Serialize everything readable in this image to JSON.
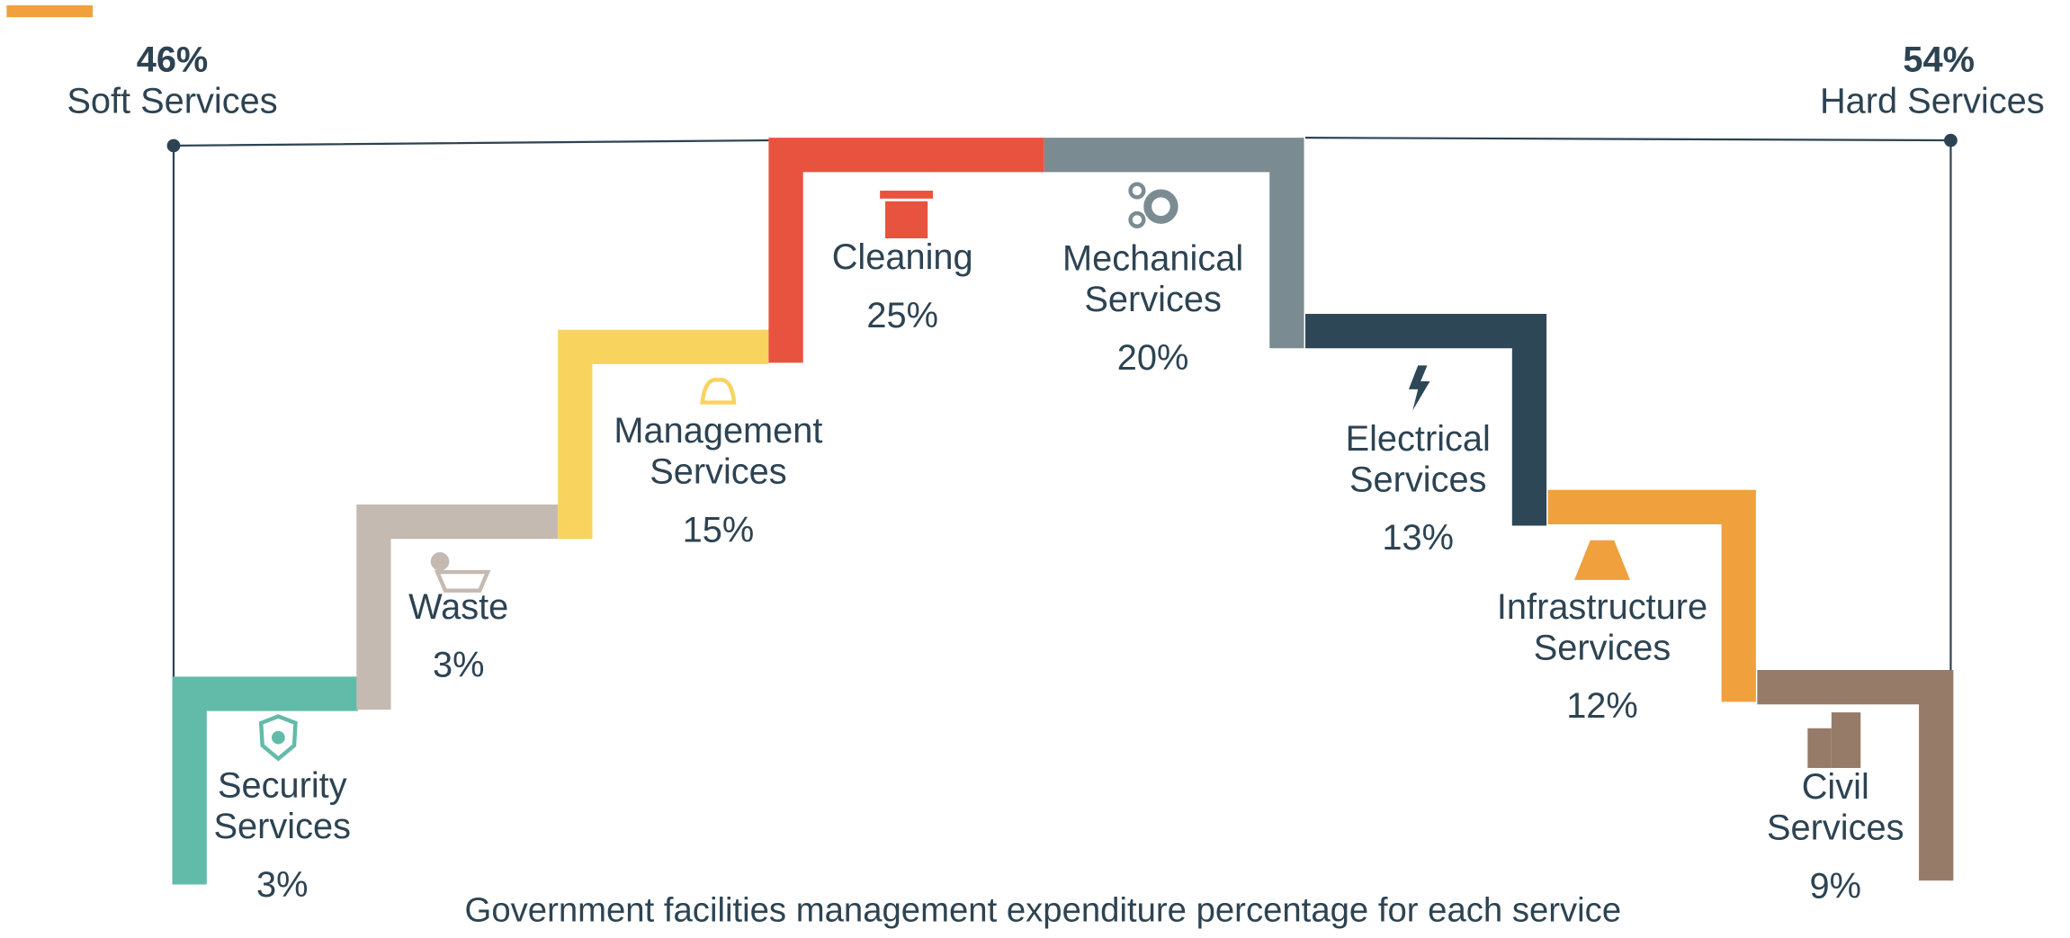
{
  "groups": [
    {
      "percent": "46%",
      "label": "Soft Services"
    },
    {
      "percent": "54%",
      "label": "Hard Services"
    }
  ],
  "services": [
    {
      "name_lines": [
        "Security",
        "Services"
      ],
      "percent": "3%"
    },
    {
      "name_lines": [
        "Waste"
      ],
      "percent": "3%"
    },
    {
      "name_lines": [
        "Management",
        "Services"
      ],
      "percent": "15%"
    },
    {
      "name_lines": [
        "Cleaning"
      ],
      "percent": "25%"
    },
    {
      "name_lines": [
        "Mechanical",
        "Services"
      ],
      "percent": "20%"
    },
    {
      "name_lines": [
        "Electrical",
        "Services"
      ],
      "percent": "13%"
    },
    {
      "name_lines": [
        "Infrastructure",
        "Services"
      ],
      "percent": "12%"
    },
    {
      "name_lines": [
        "Civil",
        "Services"
      ],
      "percent": "9%"
    }
  ],
  "caption": "Government facilities management expenditure percentage for each service"
}
